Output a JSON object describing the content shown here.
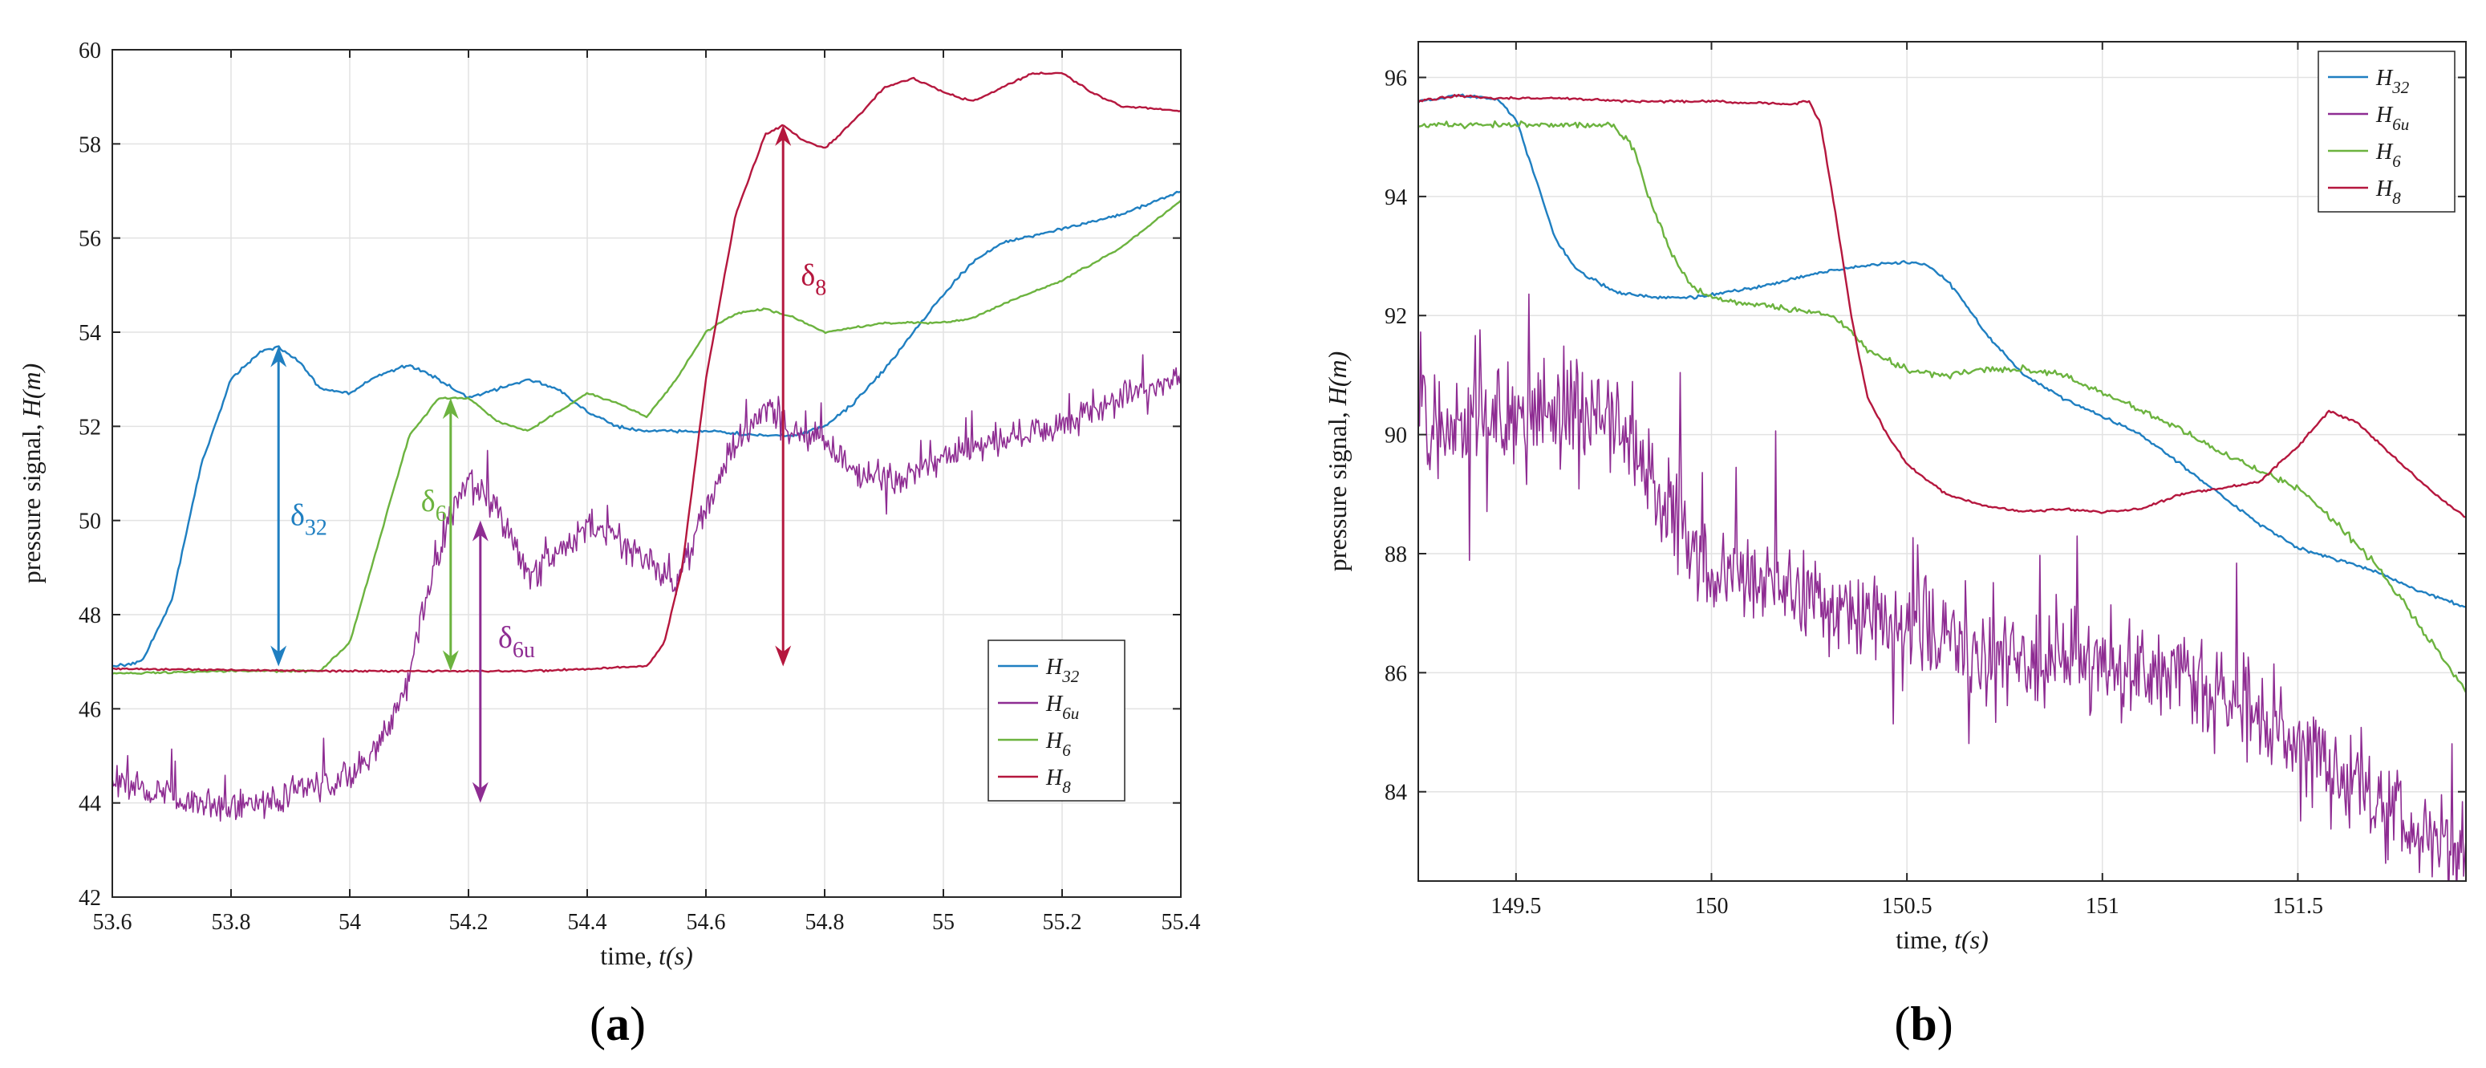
{
  "chart_data": [
    {
      "id": "a",
      "type": "line",
      "panel_label_prefix": "(",
      "panel_label_letter": "a",
      "panel_label_suffix": ")",
      "xlabel": "time, ",
      "xlabel_unit": "t(s)",
      "ylabel": "pressure signal, ",
      "ylabel_unit": "H(m)",
      "xlim": [
        53.6,
        55.4
      ],
      "ylim": [
        42,
        60
      ],
      "xticks": [
        53.6,
        53.8,
        54,
        54.2,
        54.4,
        54.6,
        54.8,
        55,
        55.2,
        55.4
      ],
      "xtick_labels": [
        "53.6",
        "53.8",
        "54",
        "54.2",
        "54.4",
        "54.6",
        "54.8",
        "55",
        "55.2",
        "55.4"
      ],
      "yticks": [
        42,
        44,
        46,
        48,
        50,
        52,
        54,
        56,
        58,
        60
      ],
      "ytick_labels": [
        "42",
        "44",
        "46",
        "48",
        "50",
        "52",
        "54",
        "56",
        "58",
        "60"
      ],
      "grid": true,
      "legend_position": "lower-right",
      "series": [
        {
          "name": "H",
          "sub": "32",
          "color": "#1f7fc1",
          "noise": 0.05,
          "x": [
            53.6,
            53.65,
            53.7,
            53.75,
            53.8,
            53.85,
            53.88,
            53.92,
            53.95,
            54.0,
            54.05,
            54.1,
            54.15,
            54.2,
            54.25,
            54.3,
            54.35,
            54.4,
            54.45,
            54.5,
            54.6,
            54.7,
            54.75,
            54.8,
            54.85,
            54.9,
            55.0,
            55.05,
            55.1,
            55.2,
            55.3,
            55.4
          ],
          "y": [
            46.9,
            47.0,
            48.3,
            51.2,
            53.0,
            53.6,
            53.7,
            53.3,
            52.8,
            52.7,
            53.1,
            53.3,
            53.0,
            52.6,
            52.8,
            53.0,
            52.8,
            52.3,
            52.0,
            51.9,
            51.9,
            51.8,
            51.8,
            52.0,
            52.5,
            53.2,
            54.8,
            55.5,
            55.9,
            56.2,
            56.5,
            57.0
          ]
        },
        {
          "name": "H",
          "sub": "6u",
          "color": "#8e2c92",
          "noise": 0.5,
          "x": [
            53.6,
            53.7,
            53.8,
            53.9,
            54.0,
            54.05,
            54.1,
            54.13,
            54.17,
            54.2,
            54.25,
            54.3,
            54.35,
            54.4,
            54.45,
            54.5,
            54.55,
            54.6,
            54.65,
            54.7,
            54.75,
            54.8,
            54.85,
            54.9,
            54.95,
            55.0,
            55.1,
            55.2,
            55.3,
            55.4
          ],
          "y": [
            44.5,
            44.1,
            43.9,
            44.2,
            44.6,
            45.2,
            46.6,
            48.4,
            50.2,
            50.9,
            50.2,
            48.8,
            49.3,
            49.9,
            49.6,
            49.2,
            48.6,
            50.3,
            51.6,
            52.4,
            51.9,
            51.6,
            51.1,
            50.9,
            51.0,
            51.4,
            51.7,
            52.1,
            52.6,
            53.1
          ]
        },
        {
          "name": "H",
          "sub": "6",
          "color": "#6cb33f",
          "noise": 0.03,
          "x": [
            53.6,
            53.8,
            53.95,
            54.0,
            54.05,
            54.1,
            54.15,
            54.2,
            54.25,
            54.3,
            54.35,
            54.4,
            54.45,
            54.5,
            54.55,
            54.6,
            54.65,
            54.7,
            54.75,
            54.8,
            54.9,
            55.0,
            55.05,
            55.1,
            55.2,
            55.3,
            55.4
          ],
          "y": [
            46.75,
            46.8,
            46.8,
            47.4,
            49.6,
            51.8,
            52.6,
            52.6,
            52.1,
            51.9,
            52.3,
            52.7,
            52.5,
            52.2,
            53.0,
            54.0,
            54.4,
            54.5,
            54.3,
            54.0,
            54.2,
            54.2,
            54.3,
            54.6,
            55.1,
            55.8,
            56.8
          ]
        },
        {
          "name": "H",
          "sub": "8",
          "color": "#b5173e",
          "noise": 0.03,
          "x": [
            53.6,
            54.0,
            54.3,
            54.5,
            54.53,
            54.56,
            54.6,
            54.65,
            54.7,
            54.73,
            54.76,
            54.8,
            54.85,
            54.9,
            54.95,
            55.0,
            55.05,
            55.1,
            55.15,
            55.2,
            55.25,
            55.3,
            55.4
          ],
          "y": [
            46.85,
            46.8,
            46.8,
            46.9,
            47.4,
            49.0,
            53.0,
            56.5,
            58.2,
            58.4,
            58.1,
            57.9,
            58.5,
            59.2,
            59.4,
            59.1,
            58.9,
            59.2,
            59.5,
            59.5,
            59.1,
            58.8,
            58.7
          ]
        }
      ],
      "annotations": [
        {
          "label": "δ",
          "sub": "32",
          "color": "#1f7fc1",
          "x": 53.88,
          "y_from": 53.7,
          "y_to": 46.9,
          "label_x": 53.9,
          "label_y": 49.9
        },
        {
          "label": "δ",
          "sub": "6",
          "color": "#6cb33f",
          "x": 54.17,
          "y_from": 52.6,
          "y_to": 46.8,
          "label_x": 54.12,
          "label_y": 50.2
        },
        {
          "label": "δ",
          "sub": "6u",
          "color": "#8e2c92",
          "x": 54.22,
          "y_from": 50.0,
          "y_to": 44.0,
          "label_x": 54.25,
          "label_y": 47.3
        },
        {
          "label": "δ",
          "sub": "8",
          "color": "#b5173e",
          "x": 54.73,
          "y_from": 58.4,
          "y_to": 46.9,
          "label_x": 54.76,
          "label_y": 55.0
        }
      ]
    },
    {
      "id": "b",
      "type": "line",
      "panel_label_prefix": "(",
      "panel_label_letter": "b",
      "panel_label_suffix": ")",
      "xlabel": "time, ",
      "xlabel_unit": "t(s)",
      "ylabel": "pressure signal, ",
      "ylabel_unit": "H(m)",
      "xlim": [
        149.25,
        151.93
      ],
      "ylim": [
        82.5,
        96.6
      ],
      "xticks": [
        149.5,
        150,
        150.5,
        151,
        151.5
      ],
      "xtick_labels": [
        "149.5",
        "150",
        "150.5",
        "151",
        "151.5"
      ],
      "yticks": [
        84,
        86,
        88,
        90,
        92,
        94,
        96
      ],
      "ytick_labels": [
        "84",
        "86",
        "88",
        "90",
        "92",
        "94",
        "96"
      ],
      "grid": true,
      "legend_position": "top-right",
      "series": [
        {
          "name": "H",
          "sub": "32",
          "color": "#1f7fc1",
          "noise": 0.04,
          "x": [
            149.25,
            149.35,
            149.45,
            149.5,
            149.55,
            149.6,
            149.65,
            149.75,
            149.85,
            149.95,
            150.0,
            150.1,
            150.2,
            150.3,
            150.4,
            150.5,
            150.55,
            150.6,
            150.65,
            150.7,
            150.8,
            150.9,
            151.0,
            151.1,
            151.2,
            151.3,
            151.4,
            151.5,
            151.6,
            151.7,
            151.8,
            151.93
          ],
          "y": [
            95.6,
            95.7,
            95.65,
            95.3,
            94.3,
            93.3,
            92.8,
            92.4,
            92.3,
            92.3,
            92.35,
            92.45,
            92.6,
            92.75,
            92.85,
            92.9,
            92.85,
            92.6,
            92.2,
            91.7,
            91.0,
            90.6,
            90.3,
            90.0,
            89.5,
            89.0,
            88.5,
            88.1,
            87.9,
            87.7,
            87.4,
            87.1
          ]
        },
        {
          "name": "H",
          "sub": "6u",
          "color": "#8e2c92",
          "noise": 1.3,
          "x": [
            149.25,
            149.5,
            149.7,
            149.8,
            149.9,
            150.0,
            150.1,
            150.2,
            150.3,
            150.4,
            150.5,
            150.6,
            150.7,
            150.8,
            150.9,
            151.0,
            151.1,
            151.2,
            151.3,
            151.4,
            151.5,
            151.6,
            151.7,
            151.8,
            151.93
          ],
          "y": [
            90.3,
            90.2,
            90.4,
            89.8,
            88.6,
            87.8,
            87.6,
            87.3,
            87.1,
            87.0,
            86.7,
            86.5,
            86.4,
            86.3,
            86.2,
            86.1,
            86.0,
            85.8,
            85.6,
            85.3,
            84.9,
            84.3,
            83.8,
            83.3,
            82.9
          ]
        },
        {
          "name": "H",
          "sub": "6",
          "color": "#6cb33f",
          "noise": 0.08,
          "x": [
            149.25,
            149.5,
            149.75,
            149.8,
            149.85,
            149.9,
            149.95,
            150.0,
            150.1,
            150.2,
            150.3,
            150.35,
            150.4,
            150.5,
            150.6,
            150.7,
            150.8,
            150.9,
            151.0,
            151.1,
            151.2,
            151.3,
            151.4,
            151.5,
            151.6,
            151.7,
            151.8,
            151.93
          ],
          "y": [
            95.2,
            95.2,
            95.2,
            94.8,
            93.8,
            93.0,
            92.5,
            92.3,
            92.2,
            92.1,
            92.0,
            91.8,
            91.4,
            91.1,
            91.0,
            91.1,
            91.1,
            91.0,
            90.7,
            90.4,
            90.1,
            89.7,
            89.4,
            89.1,
            88.5,
            87.8,
            86.9,
            85.7
          ]
        },
        {
          "name": "H",
          "sub": "8",
          "color": "#b5173e",
          "noise": 0.03,
          "x": [
            149.25,
            149.35,
            149.45,
            149.6,
            149.8,
            150.0,
            150.2,
            150.25,
            150.28,
            150.32,
            150.36,
            150.4,
            150.45,
            150.5,
            150.6,
            150.7,
            150.8,
            150.9,
            151.0,
            151.1,
            151.2,
            151.3,
            151.4,
            151.5,
            151.58,
            151.65,
            151.75,
            151.85,
            151.93
          ],
          "y": [
            95.6,
            95.7,
            95.65,
            95.65,
            95.6,
            95.6,
            95.55,
            95.6,
            95.2,
            93.6,
            91.9,
            90.6,
            90.0,
            89.5,
            89.0,
            88.8,
            88.7,
            88.75,
            88.7,
            88.75,
            89.0,
            89.1,
            89.2,
            89.8,
            90.4,
            90.2,
            89.6,
            89.0,
            88.6
          ]
        }
      ],
      "annotations": []
    }
  ]
}
